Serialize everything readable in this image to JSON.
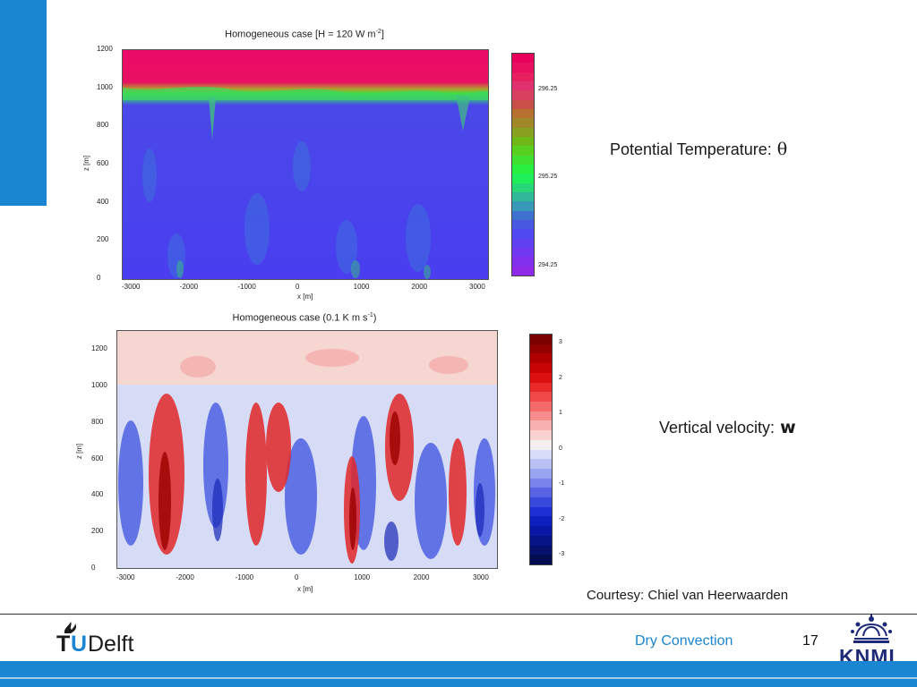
{
  "theme": {
    "accent": "#1a85d0",
    "footer_text_color": "#1a85d0"
  },
  "plot1": {
    "title_text": "Homogeneous case [H = 120 W m",
    "title_sup": "-2",
    "title_end": "]",
    "y_ticks": [
      "1200",
      "1000",
      "800",
      "600",
      "400",
      "200",
      "0"
    ],
    "x_ticks": [
      "-3000",
      "-2000",
      "-1000",
      "0",
      "1000",
      "2000",
      "3000"
    ],
    "ylabel": "z [m]",
    "xlabel": "x [m]",
    "colorbar_ticks": [
      "296.25",
      "295.25",
      "294.25"
    ],
    "colorbar_colors": [
      "#e8005a",
      "#ea1060",
      "#e82060",
      "#e03070",
      "#d84060",
      "#c85048",
      "#b87030",
      "#a08828",
      "#88a020",
      "#70b818",
      "#58d020",
      "#40e030",
      "#28f040",
      "#20ee58",
      "#28d878",
      "#30b898",
      "#3898b8",
      "#4070d0",
      "#4858e0",
      "#5048f0",
      "#6040f0",
      "#7038f0",
      "#8030ec",
      "#9028e8"
    ]
  },
  "plot2": {
    "title_text": "Homogeneous case (0.1 K m s",
    "title_sup": "-1",
    "title_end": ")",
    "y_ticks": [
      "1200",
      "1000",
      "800",
      "600",
      "400",
      "200",
      "0"
    ],
    "x_ticks": [
      "-3000",
      "-2000",
      "-1000",
      "0",
      "1000",
      "2000",
      "3000"
    ],
    "ylabel": "z [m]",
    "xlabel": "x [m]",
    "colorbar_ticks": [
      "3",
      "2",
      "1",
      "0",
      "-1",
      "-2",
      "-3"
    ],
    "colorbar_colors": [
      "#7a0000",
      "#940000",
      "#ae0000",
      "#c80404",
      "#dc1010",
      "#ea2a2a",
      "#f04848",
      "#f46a6a",
      "#f68c8c",
      "#f8b0b0",
      "#fad2d2",
      "#f4f0f0",
      "#d8dcf8",
      "#b8c0f4",
      "#98a4f0",
      "#7884ec",
      "#5864e4",
      "#3848dc",
      "#1c30d4",
      "#0c20c0",
      "#0818a4",
      "#061488",
      "#04106c",
      "#020c50"
    ]
  },
  "labels": {
    "potential_temp": "Potential Temperature:",
    "theta": "θ",
    "vertical_velocity": "Vertical velocity:",
    "w": "w",
    "courtesy": "Courtesy: Chiel van Heerwaarden"
  },
  "footer": {
    "tu_prefix": "T",
    "tu_u": "U",
    "tu_suffix": "Delft",
    "title": "Dry Convection",
    "page": "17",
    "knmi": "KNMI"
  }
}
